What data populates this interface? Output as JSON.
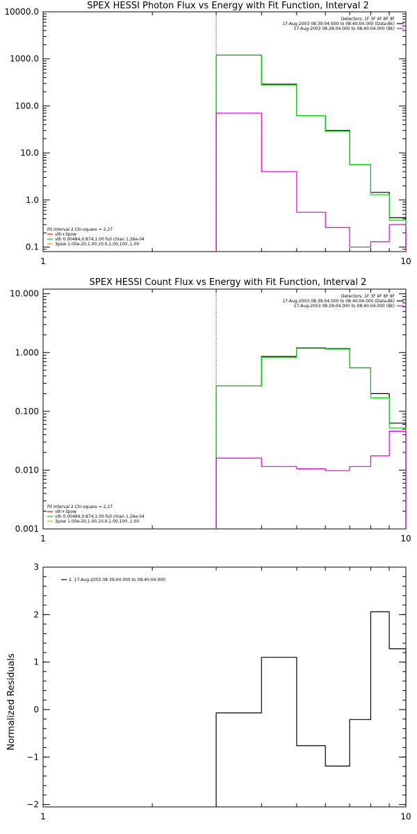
{
  "chart_data": [
    {
      "type": "line",
      "title": "SPEX HESSI Photon Flux vs Energy with Fit Function, Interval 2",
      "xscale": "log",
      "yscale": "log",
      "xlim": [
        1,
        10
      ],
      "ylim": [
        0.08,
        10000
      ],
      "xtick_labels": [
        {
          "v": 1,
          "t": "1"
        },
        {
          "v": 10,
          "t": "10"
        }
      ],
      "ytick_labels": [
        {
          "v": 0.1,
          "t": "0.1"
        },
        {
          "v": 1,
          "t": "1.0"
        },
        {
          "v": 10,
          "t": "10.0"
        },
        {
          "v": 100,
          "t": "100.0"
        },
        {
          "v": 1000,
          "t": "1000.0"
        },
        {
          "v": 10000,
          "t": "10000.0"
        }
      ],
      "vline_x": 3,
      "header": [
        "Detectors: 1F 3F 4F 8F 9F",
        "17-Aug-2003 08:39:04.000 to 08:40:04.000 (Data-Bk)",
        "17-Aug-2003 08:28:04.000 to 08:40:04.000 (Bk)"
      ],
      "legend": [
        "Fit Interval 2   Chi-square = 2.27",
        "vth+3pow",
        "vth 0.00484,0.874,1.00  full chian 1.26e-04",
        "3pow 1.00e-20,1.00,10.0,1.00,100.,1.00"
      ],
      "legend_colors": [
        "#ff0000",
        "#00c800",
        "#c8aa00"
      ],
      "header_colors": [
        "#000000",
        "#e000e0"
      ],
      "series": [
        {
          "name": "17-Aug-2003 08:39:04.000 to 08:40:04.000 (Data-Bk)",
          "color": "#000000",
          "edges": [
            3,
            4,
            5,
            6,
            7,
            8,
            9,
            10
          ],
          "values": [
            1200,
            290,
            62,
            30,
            5.7,
            1.45,
            0.42
          ]
        },
        {
          "name": "vth+3pow",
          "color": "#00dd00",
          "edges": [
            3,
            4,
            5,
            6,
            7,
            8,
            9,
            10
          ],
          "values": [
            1200,
            280,
            62,
            29,
            5.7,
            1.3,
            0.37
          ]
        },
        {
          "name": "17-Aug-2003 08:28:04.000 to 08:40:04.000 (Bk)",
          "color": "#e000e0",
          "edges": [
            3,
            4,
            5,
            6,
            7,
            8,
            9,
            10
          ],
          "values": [
            70,
            4,
            0.55,
            0.26,
            0.1,
            0.13,
            0.3
          ]
        }
      ]
    },
    {
      "type": "line",
      "title": "SPEX HESSI Count Flux vs Energy with Fit Function, Interval 2",
      "xscale": "log",
      "yscale": "log",
      "xlim": [
        1,
        10
      ],
      "ylim": [
        0.001,
        12
      ],
      "xtick_labels": [
        {
          "v": 1,
          "t": "1"
        },
        {
          "v": 10,
          "t": "10"
        }
      ],
      "ytick_labels": [
        {
          "v": 0.001,
          "t": "0.001"
        },
        {
          "v": 0.01,
          "t": "0.010"
        },
        {
          "v": 0.1,
          "t": "0.100"
        },
        {
          "v": 1,
          "t": "1.000"
        },
        {
          "v": 10,
          "t": "10.000"
        }
      ],
      "vline_x": 3,
      "header": [
        "Detectors: 1F 3F 4F 8F 9F",
        "17-Aug-2003 08:39:04.000 to 08:40:04.000 (Data-Bk)",
        "17-Aug-2003 08:28:04.000 to 08:40:04.000 (Bk)"
      ],
      "legend": [
        "Fit Interval 2   Chi-square = 2.27",
        "vth+3pow",
        "vth 0.00484,0.874,1.00  full chian 1.26e-04",
        "3pow 1.00e-20,1.00,10.0,1.00,100.,1.00"
      ],
      "legend_colors": [
        "#ff0000",
        "#00c800",
        "#c8aa00"
      ],
      "header_colors": [
        "#000000",
        "#e000e0"
      ],
      "series": [
        {
          "name": "17-Aug-2003 08:39:04.000 to 08:40:04.000 (Data-Bk)",
          "color": "#000000",
          "edges": [
            3,
            4,
            5,
            6,
            7,
            8,
            9,
            10
          ],
          "values": [
            0.27,
            0.86,
            1.2,
            1.17,
            0.55,
            0.2,
            0.063
          ]
        },
        {
          "name": "vth+3pow",
          "color": "#00dd00",
          "edges": [
            3,
            4,
            5,
            6,
            7,
            8,
            9,
            10
          ],
          "values": [
            0.27,
            0.83,
            1.18,
            1.15,
            0.55,
            0.17,
            0.052
          ]
        },
        {
          "name": "17-Aug-2003 08:28:04.000 to 08:40:04.000 (Bk)",
          "color": "#e000e0",
          "edges": [
            3,
            4,
            5,
            6,
            7,
            8,
            9,
            10
          ],
          "values": [
            0.016,
            0.0115,
            0.0105,
            0.0098,
            0.0115,
            0.0175,
            0.046
          ]
        }
      ]
    },
    {
      "type": "line",
      "title": "",
      "xscale": "log",
      "yscale": "linear",
      "xlim": [
        1,
        10
      ],
      "ylim": [
        -2.05,
        3
      ],
      "ylabel": "Normalized Residuals",
      "xtick_labels": [
        {
          "v": 1,
          "t": "1"
        },
        {
          "v": 10,
          "t": "10"
        }
      ],
      "ytick_labels": [
        {
          "v": -2,
          "t": "−2"
        },
        {
          "v": -1,
          "t": "−1"
        },
        {
          "v": 0,
          "t": "0"
        },
        {
          "v": 1,
          "t": "1"
        },
        {
          "v": 2,
          "t": "2"
        },
        {
          "v": 3,
          "t": "3"
        }
      ],
      "legend": [
        "2. 17-Aug-2003 08:39:04.000 to 08:40:04.000"
      ],
      "series": [
        {
          "name": "2. 17-Aug-2003 08:39:04.000 to 08:40:04.000",
          "color": "#000000",
          "edges": [
            3,
            4,
            5,
            6,
            7,
            8,
            9,
            10
          ],
          "values": [
            -0.07,
            1.1,
            -0.76,
            -1.19,
            -0.21,
            2.06,
            1.28
          ]
        }
      ]
    }
  ]
}
